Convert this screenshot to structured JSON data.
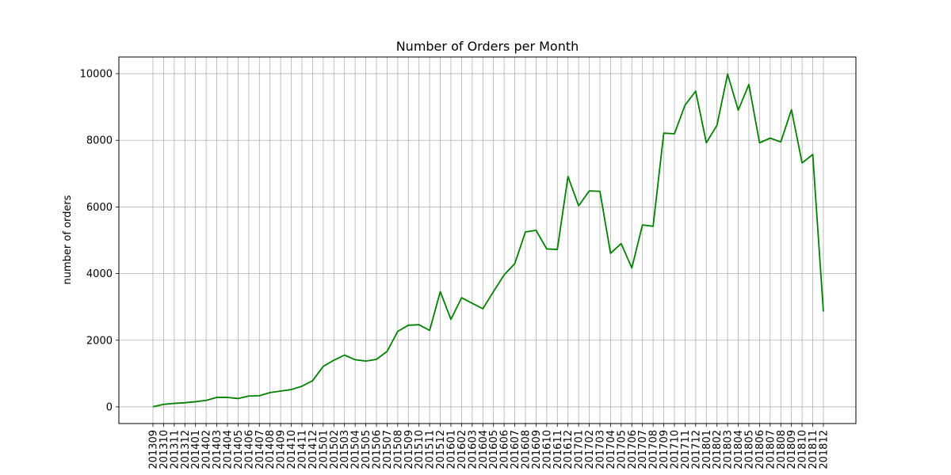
{
  "chart_data": {
    "type": "line",
    "title": "Number of Orders per Month",
    "xlabel": "",
    "ylabel": "number of orders",
    "line_color": "#008000",
    "grid": true,
    "ylim": [
      -500,
      10500
    ],
    "yticks": [
      0,
      2000,
      4000,
      6000,
      8000,
      10000
    ],
    "x": [
      "201309",
      "201310",
      "201311",
      "201312",
      "201401",
      "201402",
      "201403",
      "201404",
      "201405",
      "201406",
      "201407",
      "201408",
      "201409",
      "201410",
      "201411",
      "201412",
      "201501",
      "201502",
      "201503",
      "201504",
      "201505",
      "201506",
      "201507",
      "201508",
      "201509",
      "201510",
      "201511",
      "201512",
      "201601",
      "201602",
      "201603",
      "201604",
      "201605",
      "201606",
      "201607",
      "201608",
      "201609",
      "201610",
      "201611",
      "201612",
      "201701",
      "201702",
      "201703",
      "201704",
      "201705",
      "201706",
      "201707",
      "201708",
      "201709",
      "201710",
      "201711",
      "201712",
      "201801",
      "201802",
      "201803",
      "201804",
      "201805",
      "201806",
      "201807",
      "201808",
      "201809",
      "201810",
      "201811",
      "201812"
    ],
    "values": [
      5,
      75,
      105,
      125,
      155,
      195,
      285,
      285,
      250,
      325,
      335,
      430,
      475,
      520,
      620,
      785,
      1215,
      1400,
      1555,
      1415,
      1375,
      1425,
      1665,
      2265,
      2450,
      2465,
      2295,
      3460,
      2625,
      3275,
      3110,
      2945,
      3460,
      3960,
      4300,
      5250,
      5300,
      4740,
      4725,
      6915,
      6035,
      6480,
      6470,
      4610,
      4900,
      4170,
      5460,
      5420,
      8215,
      8195,
      9055,
      9475,
      7925,
      8450,
      9985,
      8905,
      9675,
      7925,
      8065,
      7950,
      8920,
      7320,
      7575,
      2860
    ]
  }
}
